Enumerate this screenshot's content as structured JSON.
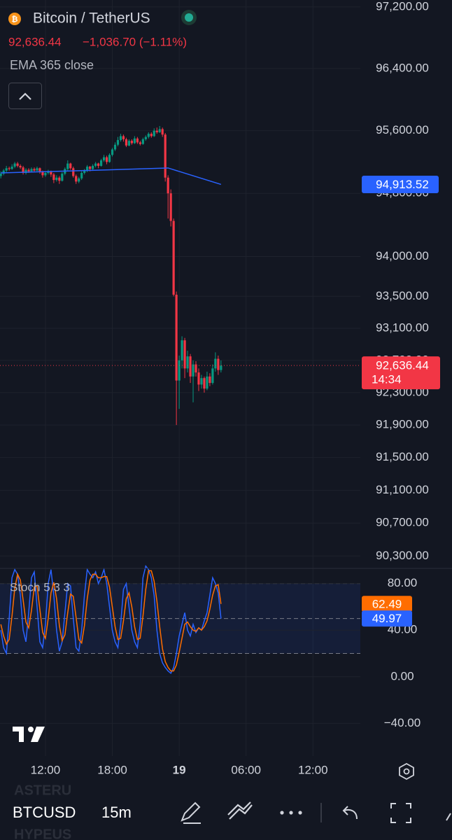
{
  "header": {
    "symbol": "Bitcoin / TetherUS",
    "price": "92,636.44",
    "change": "−1,036.70 (−1.11%)",
    "indicator": "EMA 365 close"
  },
  "chart_data": [
    {
      "type": "candlestick",
      "log": true,
      "grid": true,
      "up_color": "#089981",
      "down_color": "#f23645",
      "ohlc": [
        [
          95020,
          95080,
          94990,
          95050
        ],
        [
          95050,
          95110,
          95030,
          95090
        ],
        [
          95090,
          95150,
          95070,
          95120
        ],
        [
          95120,
          95140,
          95090,
          95110
        ],
        [
          95110,
          95170,
          95100,
          95140
        ],
        [
          95140,
          95200,
          95120,
          95180
        ],
        [
          95180,
          95200,
          95130,
          95150
        ],
        [
          95150,
          95170,
          95110,
          95130
        ],
        [
          95130,
          95150,
          95040,
          95060
        ],
        [
          95060,
          95120,
          95040,
          95100
        ],
        [
          95100,
          95120,
          95060,
          95080
        ],
        [
          95080,
          95130,
          95070,
          95110
        ],
        [
          95110,
          95130,
          95070,
          95090
        ],
        [
          95090,
          95140,
          95080,
          95120
        ],
        [
          95120,
          95130,
          95050,
          95070
        ],
        [
          95070,
          95090,
          95000,
          95030
        ],
        [
          95030,
          95080,
          95010,
          95060
        ],
        [
          95060,
          95100,
          95040,
          95080
        ],
        [
          95080,
          95090,
          95010,
          95040
        ],
        [
          95040,
          95060,
          94930,
          94970
        ],
        [
          94970,
          95030,
          94950,
          95000
        ],
        [
          95000,
          95020,
          94920,
          94960
        ],
        [
          94960,
          95070,
          94950,
          95050
        ],
        [
          95050,
          95130,
          95030,
          95110
        ],
        [
          95110,
          95220,
          95090,
          95180
        ],
        [
          95180,
          95190,
          95100,
          95120
        ],
        [
          95120,
          95140,
          95000,
          95020
        ],
        [
          95020,
          95040,
          94920,
          94950
        ],
        [
          94950,
          95010,
          94930,
          94990
        ],
        [
          94990,
          95080,
          94970,
          95060
        ],
        [
          95060,
          95110,
          95040,
          95090
        ],
        [
          95090,
          95160,
          95070,
          95140
        ],
        [
          95140,
          95150,
          95080,
          95110
        ],
        [
          95110,
          95170,
          95090,
          95150
        ],
        [
          95150,
          95200,
          95130,
          95180
        ],
        [
          95180,
          95190,
          95120,
          95150
        ],
        [
          95150,
          95240,
          95140,
          95220
        ],
        [
          95220,
          95290,
          95200,
          95260
        ],
        [
          95260,
          95280,
          95170,
          95200
        ],
        [
          95200,
          95310,
          95190,
          95290
        ],
        [
          95290,
          95380,
          95270,
          95360
        ],
        [
          95360,
          95450,
          95340,
          95420
        ],
        [
          95420,
          95520,
          95400,
          95480
        ],
        [
          95480,
          95560,
          95460,
          95530
        ],
        [
          95530,
          95550,
          95460,
          95490
        ],
        [
          95490,
          95510,
          95390,
          95410
        ],
        [
          95410,
          95490,
          95400,
          95470
        ],
        [
          95470,
          95490,
          95420,
          95440
        ],
        [
          95440,
          95530,
          95430,
          95500
        ],
        [
          95500,
          95520,
          95430,
          95450
        ],
        [
          95450,
          95470,
          95410,
          95430
        ],
        [
          95430,
          95510,
          95420,
          95490
        ],
        [
          95490,
          95540,
          95470,
          95520
        ],
        [
          95520,
          95580,
          95500,
          95560
        ],
        [
          95560,
          95580,
          95510,
          95530
        ],
        [
          95530,
          95630,
          95520,
          95600
        ],
        [
          95600,
          95640,
          95560,
          95580
        ],
        [
          95580,
          95660,
          95570,
          95620
        ],
        [
          95620,
          95640,
          95520,
          95550
        ],
        [
          95550,
          95570,
          94950,
          95000
        ],
        [
          95000,
          95030,
          94480,
          94800
        ],
        [
          94800,
          94850,
          94380,
          94450
        ],
        [
          94450,
          94480,
          93500,
          93520
        ],
        [
          93520,
          93560,
          91900,
          92450
        ],
        [
          92450,
          92760,
          92100,
          92700
        ],
        [
          92700,
          93000,
          92600,
          92950
        ],
        [
          92950,
          92980,
          92480,
          92600
        ],
        [
          92600,
          92820,
          92550,
          92750
        ],
        [
          92750,
          92780,
          92420,
          92500
        ],
        [
          92500,
          92700,
          92180,
          92650
        ],
        [
          92650,
          92690,
          92500,
          92550
        ],
        [
          92550,
          92600,
          92320,
          92400
        ],
        [
          92400,
          92520,
          92350,
          92480
        ],
        [
          92480,
          92500,
          92300,
          92350
        ],
        [
          92350,
          92560,
          92330,
          92500
        ],
        [
          92500,
          92540,
          92380,
          92420
        ],
        [
          92420,
          92650,
          92400,
          92600
        ],
        [
          92600,
          92800,
          92560,
          92720
        ],
        [
          92720,
          92760,
          92520,
          92580
        ],
        [
          92580,
          92700,
          92550,
          92636.44
        ]
      ],
      "ema": {
        "color": "#2962ff",
        "x": [
          0,
          30,
          60,
          79
        ],
        "values": [
          95060,
          95090,
          95123,
          94913.52
        ],
        "last_label": "94,913.52"
      },
      "countdown": "14:34",
      "xlim": [
        -0.3,
        129
      ],
      "xticks": [
        {
          "value": 16,
          "label": "12:00"
        },
        {
          "value": 40,
          "label": "18:00"
        },
        {
          "value": 64,
          "label": "19"
        },
        {
          "value": 88,
          "label": "06:00"
        },
        {
          "value": 112,
          "label": "12:00"
        }
      ],
      "ylim": [
        90150,
        97290
      ],
      "yticks": [
        {
          "value": 97200,
          "label": "97,200.00"
        },
        {
          "value": 96400,
          "label": "96,400.00"
        },
        {
          "value": 95600,
          "label": "95,600.00"
        },
        {
          "value": 94800,
          "label": "94,800.00"
        },
        {
          "value": 94000,
          "label": "94,000.00"
        },
        {
          "value": 93500,
          "label": "93,500.00"
        },
        {
          "value": 93100,
          "label": "93,100.00"
        },
        {
          "value": 92700,
          "label": "92,700.00"
        },
        {
          "value": 92300,
          "label": "92,300.00"
        },
        {
          "value": 91900,
          "label": "91,900.00"
        },
        {
          "value": 91500,
          "label": "91,500.00"
        },
        {
          "value": 91100,
          "label": "91,100.00"
        },
        {
          "value": 90700,
          "label": "90,700.00"
        },
        {
          "value": 90300,
          "label": "90,300.00"
        }
      ]
    },
    {
      "type": "line",
      "title": "Stoch 5 3 3",
      "xlim": [
        -0.3,
        129
      ],
      "ylim": [
        -68,
        93
      ],
      "yticks": [
        {
          "value": 80,
          "label": "80.00"
        },
        {
          "value": 40,
          "label": "40.00"
        },
        {
          "value": 0,
          "label": "0.00"
        },
        {
          "value": -40,
          "label": "−40.00"
        }
      ],
      "levels": [
        80,
        50,
        20
      ],
      "series": [
        {
          "color": "#2962ff",
          "values": [
            40,
            25,
            20,
            50,
            85,
            92,
            88,
            70,
            40,
            30,
            55,
            85,
            90,
            60,
            30,
            25,
            45,
            80,
            92,
            70,
            40,
            22,
            30,
            55,
            80,
            78,
            50,
            25,
            22,
            40,
            70,
            92,
            88,
            85,
            90,
            80,
            85,
            92,
            80,
            60,
            40,
            30,
            25,
            45,
            75,
            80,
            60,
            40,
            30,
            25,
            45,
            85,
            95,
            92,
            85,
            70,
            40,
            20,
            12,
            8,
            5,
            3,
            8,
            20,
            35,
            45,
            55,
            40,
            35,
            45,
            38,
            42,
            40,
            48,
            55,
            70,
            85,
            80,
            72,
            49.97
          ]
        },
        {
          "color": "#ff6d00",
          "values": [
            45,
            35,
            28,
            32,
            52,
            76,
            88,
            83,
            66,
            47,
            42,
            57,
            77,
            78,
            58,
            38,
            33,
            50,
            72,
            81,
            67,
            44,
            31,
            36,
            55,
            71,
            69,
            51,
            32,
            29,
            44,
            67,
            83,
            88,
            88,
            85,
            85,
            86,
            86,
            77,
            60,
            43,
            32,
            33,
            48,
            67,
            72,
            60,
            43,
            32,
            33,
            52,
            75,
            91,
            91,
            82,
            65,
            43,
            24,
            13,
            8,
            5,
            5,
            10,
            21,
            33,
            45,
            47,
            43,
            40,
            39,
            42,
            40,
            43,
            48,
            58,
            70,
            78,
            79,
            62.49
          ]
        }
      ]
    }
  ],
  "toolbar": {
    "symbol": "BTCUSD",
    "interval": "15m",
    "watchlist_above": "ASTERU",
    "watchlist_below": "HYPEUS"
  }
}
